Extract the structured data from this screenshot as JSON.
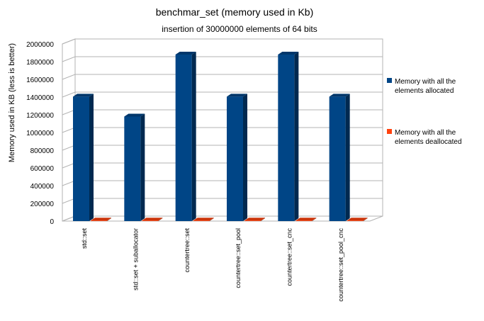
{
  "chart_data": {
    "type": "bar",
    "title": "benchmar_set (memory used in Kb)",
    "subtitle": "insertion of 30000000 elements of 64 bits",
    "xlabel": "",
    "ylabel": "Memory used in KB  (less is better)",
    "ylim": [
      0,
      2000000
    ],
    "yticks": [
      0,
      200000,
      400000,
      600000,
      800000,
      1000000,
      1200000,
      1400000,
      1600000,
      1800000,
      2000000
    ],
    "categories": [
      "std::set",
      "std::set + suballocator",
      "countertree::set",
      "countertree::set_pool",
      "countertree::set_cnc",
      "countertree::set_pool_cnc"
    ],
    "series": [
      {
        "name": "Memory with all the elements allocated",
        "values": [
          1405000,
          1180000,
          1880000,
          1405000,
          1880000,
          1405000
        ],
        "color": "#004586"
      },
      {
        "name": "Memory with all the elements deallocated",
        "values": [
          5000,
          1500,
          5000,
          1500,
          5000,
          1500
        ],
        "color": "#ff420e"
      }
    ],
    "legend_position": "right",
    "grid": true
  }
}
